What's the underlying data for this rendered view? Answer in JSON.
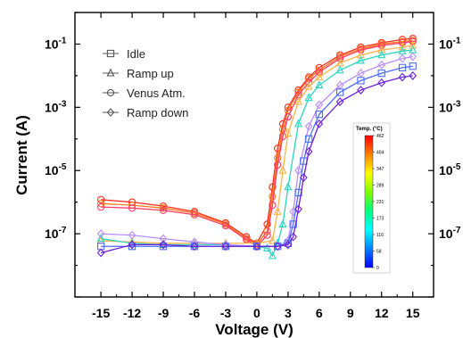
{
  "chart_data": {
    "type": "line",
    "xlabel": "Voltage (V)",
    "ylabel": "Current (A)",
    "xlim": [
      -17.5,
      17
    ],
    "ylim_log10": [
      -9,
      0
    ],
    "yscale": "log",
    "x_ticks": [
      -15,
      -12,
      -9,
      -6,
      -3,
      0,
      3,
      6,
      9,
      12,
      15
    ],
    "x_tick_labels": [
      "-15",
      "-12",
      "-9",
      "-6",
      "-3",
      "0",
      "3",
      "6",
      "9",
      "12",
      "15"
    ],
    "y_tick_values": [
      0.1,
      0.001,
      1e-05,
      1e-07
    ],
    "y_tick_labels": [
      {
        "base": "10",
        "exp": "-1"
      },
      {
        "base": "10",
        "exp": "-3"
      },
      {
        "base": "10",
        "exp": "-5"
      },
      {
        "base": "10",
        "exp": "-7"
      }
    ],
    "mirror_right_axis": true,
    "legend": {
      "placement": "top-left",
      "entries": [
        {
          "label": "Idle",
          "marker": "square"
        },
        {
          "label": "Ramp up",
          "marker": "triangle"
        },
        {
          "label": "Venus Atm.",
          "marker": "circle"
        },
        {
          "label": "Ramp down",
          "marker": "diamond"
        }
      ]
    },
    "colorbar": {
      "title": "Temp. (°C)",
      "ticks": [
        "462",
        "404",
        "347",
        "289",
        "231",
        "173",
        "116",
        "58",
        "0"
      ],
      "colors": [
        "#ff0000",
        "#ff8000",
        "#ffff00",
        "#80ff00",
        "#00ff80",
        "#00ffff",
        "#0080ff",
        "#0000ff"
      ]
    },
    "series": [
      {
        "marker": "circle",
        "color": "#ff2a1a",
        "x": [
          -15,
          -12,
          -9,
          -6,
          -3,
          -1,
          0,
          1,
          1.5,
          2,
          2.5,
          3,
          4,
          5,
          6,
          8,
          10,
          12,
          14,
          15
        ],
        "y": [
          1.2e-06,
          1e-06,
          7.5e-07,
          5e-07,
          2.2e-07,
          8e-08,
          5e-08,
          2e-07,
          3e-06,
          5e-05,
          0.0003,
          0.001,
          0.0035,
          0.009,
          0.018,
          0.045,
          0.08,
          0.11,
          0.14,
          0.15
        ]
      },
      {
        "marker": "circle",
        "color": "#ff7a1a",
        "x": [
          -15,
          -12,
          -9,
          -6,
          -3,
          -1,
          0,
          1,
          1.5,
          2,
          2.5,
          3,
          4,
          5,
          6,
          8,
          10,
          12,
          14,
          15
        ],
        "y": [
          9e-07,
          8e-07,
          6.5e-07,
          4.5e-07,
          2e-07,
          7e-08,
          4.5e-08,
          1.2e-07,
          1.5e-06,
          2.5e-05,
          0.0002,
          0.0008,
          0.003,
          0.008,
          0.015,
          0.04,
          0.07,
          0.1,
          0.12,
          0.13
        ]
      },
      {
        "marker": "circle",
        "color": "#ff3d6b",
        "x": [
          -15,
          -12,
          -9,
          -6,
          -3,
          -1,
          0,
          1,
          1.5,
          2,
          2.5,
          3,
          4,
          5,
          6,
          8,
          10,
          12,
          14,
          15
        ],
        "y": [
          7e-07,
          6.5e-07,
          5.5e-07,
          4e-07,
          1.8e-07,
          6.5e-08,
          4e-08,
          9e-08,
          8e-07,
          1.5e-05,
          0.00012,
          0.0005,
          0.0025,
          0.006,
          0.013,
          0.035,
          0.065,
          0.09,
          0.11,
          0.12
        ]
      },
      {
        "marker": "triangle",
        "color": "#ffb347",
        "x": [
          -15,
          -12,
          -9,
          -6,
          -3,
          0,
          1.5,
          2,
          2.5,
          3,
          4,
          5,
          6,
          8,
          10,
          12,
          14,
          15
        ],
        "y": [
          6e-08,
          5.5e-08,
          5e-08,
          5e-08,
          5e-08,
          5e-08,
          6e-08,
          5e-07,
          1e-05,
          0.00015,
          0.0015,
          0.0045,
          0.009,
          0.025,
          0.045,
          0.065,
          0.08,
          0.09
        ]
      },
      {
        "marker": "triangle",
        "color": "#2bd4c0",
        "x": [
          -15,
          -12,
          -9,
          -6,
          -3,
          0,
          1,
          1.5,
          2,
          2.5,
          3,
          4,
          5,
          6,
          8,
          10,
          12,
          14,
          15
        ],
        "y": [
          7e-08,
          5e-08,
          4.5e-08,
          4.5e-08,
          4.5e-08,
          4e-08,
          3.5e-08,
          2e-08,
          5e-08,
          2e-07,
          3e-06,
          0.0003,
          0.002,
          0.005,
          0.015,
          0.03,
          0.045,
          0.06,
          0.065
        ]
      },
      {
        "marker": "diamond",
        "color": "#b88cff",
        "x": [
          -15,
          -12,
          -9,
          -6,
          -3,
          0,
          2,
          3,
          3.5,
          4,
          5,
          6,
          8,
          10,
          12,
          14,
          15
        ],
        "y": [
          1e-07,
          9e-08,
          7e-08,
          5.5e-08,
          4.5e-08,
          4e-08,
          4e-08,
          6e-08,
          5e-07,
          1e-05,
          0.00025,
          0.0012,
          0.005,
          0.012,
          0.022,
          0.035,
          0.04
        ]
      },
      {
        "marker": "square",
        "color": "#4c6bff",
        "x": [
          -15,
          -12,
          -9,
          -6,
          -3,
          0,
          2,
          3,
          3.5,
          4,
          4.5,
          5,
          6,
          8,
          10,
          12,
          14,
          15
        ],
        "y": [
          4e-08,
          4e-08,
          4e-08,
          4e-08,
          4e-08,
          4e-08,
          4e-08,
          5e-08,
          2e-07,
          2e-06,
          2e-05,
          0.0001,
          0.0006,
          0.003,
          0.007,
          0.012,
          0.018,
          0.02
        ]
      },
      {
        "marker": "diamond",
        "color": "#6a1fd6",
        "x": [
          -15,
          -12,
          -9,
          -6,
          -3,
          0,
          2,
          3,
          3.5,
          4,
          4.5,
          5,
          6,
          8,
          10,
          12,
          14,
          15
        ],
        "y": [
          2.5e-08,
          4.5e-08,
          4.5e-08,
          4e-08,
          4e-08,
          4e-08,
          4e-08,
          4.5e-08,
          8e-08,
          6e-07,
          6e-06,
          4e-05,
          0.0003,
          0.0015,
          0.0035,
          0.006,
          0.009,
          0.01
        ]
      }
    ]
  }
}
